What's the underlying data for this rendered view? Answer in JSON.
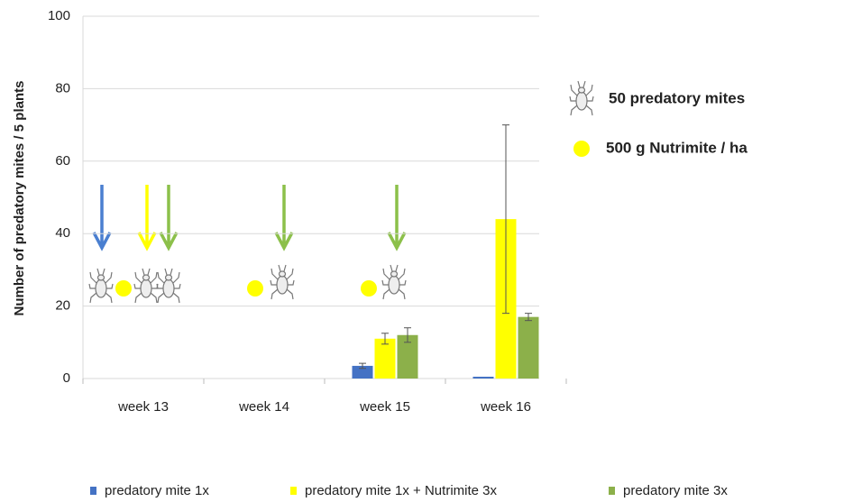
{
  "chart_data": {
    "type": "bar",
    "ylabel": "Number of predatory mites / 5 plants",
    "categories": [
      "week 13",
      "week 14",
      "week 15",
      "week 16"
    ],
    "series": [
      {
        "name": "predatory mite 1x",
        "color": "#4472c4",
        "values": [
          0,
          0,
          3.5,
          0.5
        ],
        "errors": [
          0,
          0,
          0.7,
          0
        ]
      },
      {
        "name": "predatory mite 1x + Nutrimite 3x",
        "color": "#ffff00",
        "values": [
          0,
          0,
          11,
          44
        ],
        "errors": [
          0,
          0,
          1.5,
          26
        ]
      },
      {
        "name": "predatory mite 3x",
        "color": "#8cb04a",
        "values": [
          0,
          0,
          12,
          17
        ],
        "errors": [
          0,
          0,
          2,
          1
        ]
      }
    ],
    "ylim": [
      0,
      100
    ],
    "yticks": [
      0,
      20,
      40,
      60,
      80,
      100
    ],
    "grid": true,
    "annotations": [
      "50 predatory mites",
      "500 g Nutrimite / ha"
    ]
  }
}
